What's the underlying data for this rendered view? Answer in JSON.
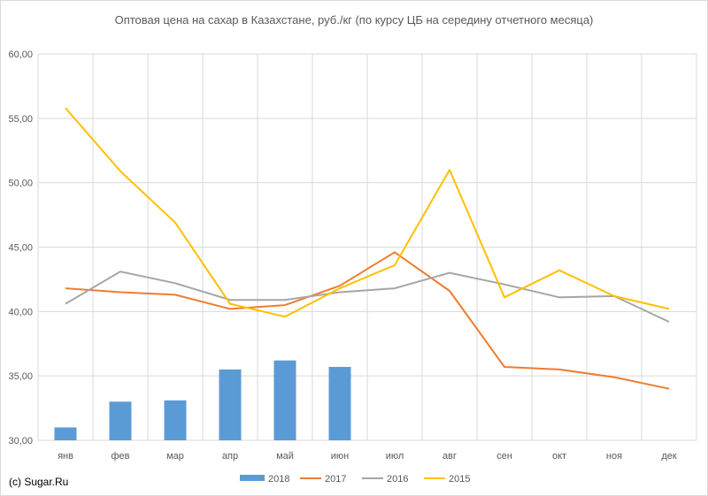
{
  "chart_data": {
    "type": "bar",
    "title": "Оптовая цена на сахар в Казахстане, руб./кг (по курсу ЦБ на середину отчетного месяца)",
    "categories": [
      "янв",
      "фев",
      "мар",
      "апр",
      "май",
      "июн",
      "июл",
      "авг",
      "сен",
      "окт",
      "ноя",
      "дек"
    ],
    "ylim": [
      30,
      60
    ],
    "yticks": [
      "30,00",
      "35,00",
      "40,00",
      "45,00",
      "50,00",
      "55,00",
      "60,00"
    ],
    "grid": true,
    "legend_position": "bottom",
    "series": [
      {
        "name": "2018",
        "kind": "bar",
        "color": "#5b9bd5",
        "values": [
          31.0,
          33.0,
          33.1,
          35.5,
          36.2,
          35.7,
          null,
          null,
          null,
          null,
          null,
          null
        ]
      },
      {
        "name": "2017",
        "kind": "line",
        "color": "#ed7d31",
        "values": [
          41.8,
          41.5,
          41.3,
          40.2,
          40.5,
          42.0,
          44.6,
          41.6,
          35.7,
          35.5,
          34.9,
          34.0
        ]
      },
      {
        "name": "2016",
        "kind": "line",
        "color": "#a5a5a5",
        "values": [
          40.6,
          43.1,
          42.2,
          40.9,
          40.9,
          41.5,
          41.8,
          43.0,
          42.1,
          41.1,
          41.2,
          39.2
        ]
      },
      {
        "name": "2015",
        "kind": "line",
        "color": "#ffc000",
        "values": [
          55.8,
          50.9,
          46.9,
          40.6,
          39.6,
          41.8,
          43.6,
          51.0,
          41.1,
          43.2,
          41.2,
          40.2
        ]
      }
    ]
  },
  "copyright": "(c) Sugar.Ru"
}
